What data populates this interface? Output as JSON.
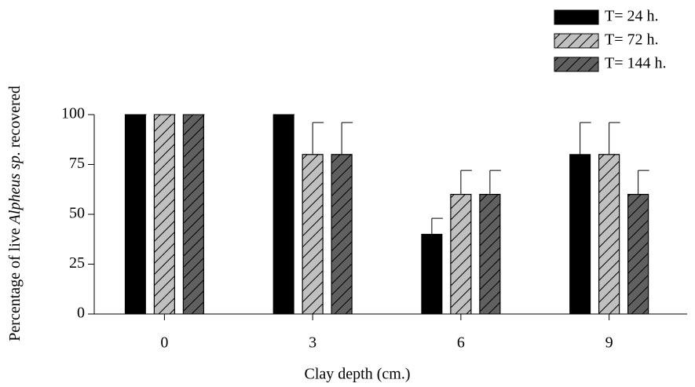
{
  "chart_data": {
    "type": "bar",
    "xlabel": "Clay depth (cm.)",
    "ylabel": [
      "Percentage of live ",
      "Alpheus sp.",
      " recovered"
    ],
    "categories": [
      "0",
      "3",
      "6",
      "9"
    ],
    "series": [
      {
        "name": "T= 24 h.",
        "color": "#000000",
        "hatch": false,
        "values": [
          100,
          100,
          40,
          80
        ],
        "errors": [
          0,
          0,
          8,
          16
        ]
      },
      {
        "name": "T= 72 h.",
        "color": "#c0c0c0",
        "hatch": true,
        "values": [
          100,
          80,
          60,
          80
        ],
        "errors": [
          0,
          16,
          12,
          16
        ]
      },
      {
        "name": "T= 144 h.",
        "color": "#606060",
        "hatch": true,
        "values": [
          100,
          80,
          60,
          60
        ],
        "errors": [
          0,
          16,
          12,
          12
        ]
      }
    ],
    "ylim": [
      0,
      100
    ],
    "yticks": [
      0,
      25,
      50,
      75,
      100
    ],
    "grid": false,
    "legend": "top-right"
  }
}
